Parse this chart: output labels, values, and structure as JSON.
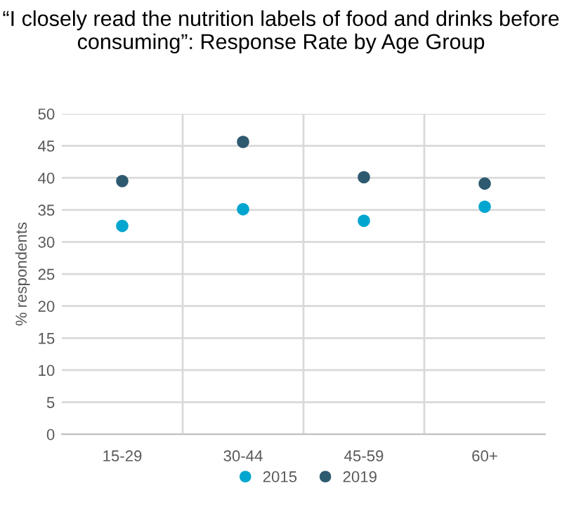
{
  "chart_data": {
    "type": "scatter",
    "title": "“I closely read the nutrition labels of food and drinks before consuming”: Response Rate by Age Group",
    "ylabel": "% respondents",
    "categories": [
      "15-29",
      "30-44",
      "45-59",
      "60+"
    ],
    "series": [
      {
        "name": "2015",
        "color": "#00a6cf",
        "values": [
          32.5,
          35.1,
          33.3,
          35.5
        ]
      },
      {
        "name": "2019",
        "color": "#2e5a70",
        "values": [
          39.5,
          45.6,
          40.1,
          39.1
        ]
      }
    ],
    "ylim": [
      0,
      50
    ],
    "yticks": [
      0,
      5,
      10,
      15,
      20,
      25,
      30,
      35,
      40,
      45,
      50
    ],
    "grid": true,
    "legend": "bottom",
    "marker": "circle"
  }
}
